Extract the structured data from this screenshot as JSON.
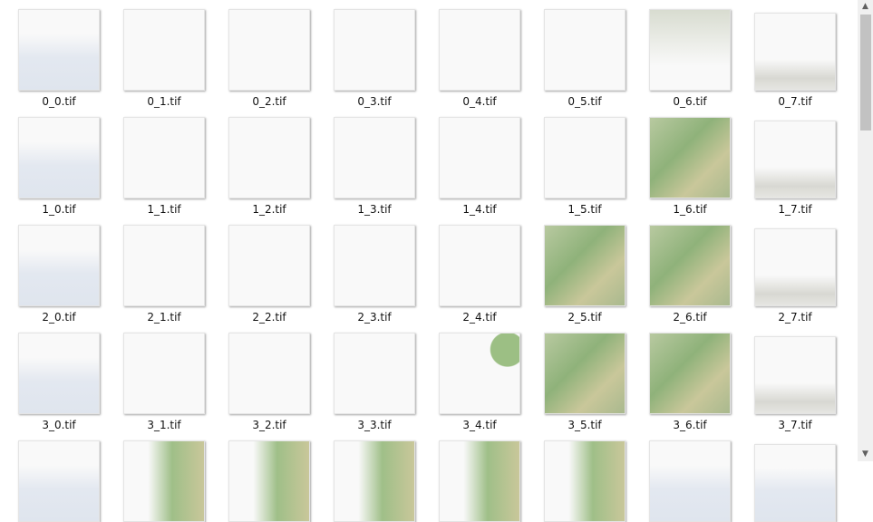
{
  "rows": [
    [
      "0_0.tif",
      "0_1.tif",
      "0_2.tif",
      "0_3.tif",
      "0_4.tif",
      "0_5.tif",
      "0_6.tif",
      "0_7.tif"
    ],
    [
      "1_0.tif",
      "1_1.tif",
      "1_2.tif",
      "1_3.tif",
      "1_4.tif",
      "1_5.tif",
      "1_6.tif",
      "1_7.tif"
    ],
    [
      "2_0.tif",
      "2_1.tif",
      "2_2.tif",
      "2_3.tif",
      "2_4.tif",
      "2_5.tif",
      "2_6.tif",
      "2_7.tif"
    ],
    [
      "3_0.tif",
      "3_1.tif",
      "3_2.tif",
      "3_3.tif",
      "3_4.tif",
      "3_5.tif",
      "3_6.tif",
      "3_7.tif"
    ]
  ]
}
